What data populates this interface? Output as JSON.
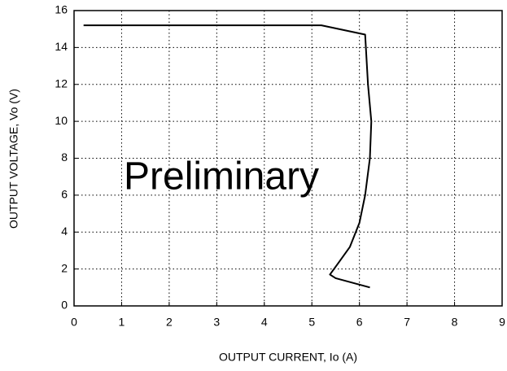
{
  "chart_data": {
    "type": "line",
    "xlabel": "OUTPUT CURRENT, Io (A)",
    "ylabel": "OUTPUT VOLTAGE, Vo (V)",
    "annotation": "Preliminary",
    "xlim": [
      0,
      9
    ],
    "xticks": [
      0,
      1,
      2,
      3,
      4,
      5,
      6,
      7,
      8,
      9
    ],
    "ylim": [
      0,
      16
    ],
    "yticks": [
      0,
      2,
      4,
      6,
      8,
      10,
      12,
      14,
      16
    ],
    "grid": true,
    "series": [
      {
        "color": "#000000",
        "x": [
          0.2,
          5.2,
          6.12,
          6.18,
          6.25,
          6.22,
          6.12,
          6.0,
          5.8,
          5.55,
          5.38,
          5.5,
          6.22
        ],
        "values": [
          15.2,
          15.2,
          14.7,
          12,
          10,
          8,
          6,
          4.5,
          3.2,
          2.3,
          1.7,
          1.5,
          1.0
        ]
      }
    ]
  }
}
